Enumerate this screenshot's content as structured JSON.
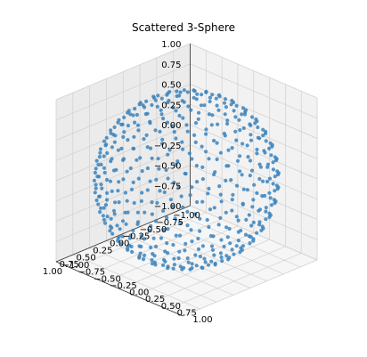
{
  "chart_data": {
    "type": "scatter",
    "subtype": "3d",
    "title": "Scattered 3-Sphere",
    "xlabel": "",
    "ylabel": "",
    "zlabel": "",
    "xlim": [
      -1.0,
      1.0
    ],
    "ylim": [
      -1.0,
      1.0
    ],
    "zlim": [
      -1.0,
      1.0
    ],
    "x_ticks": [
      "−1.00",
      "−0.75",
      "−0.50",
      "−0.25",
      "0.00",
      "0.25",
      "0.50",
      "0.75",
      "1.00"
    ],
    "y_ticks": [
      "−1.00",
      "−0.75",
      "−0.50",
      "−0.25",
      "0.00",
      "0.25",
      "0.50",
      "0.75",
      "1.00"
    ],
    "z_ticks": [
      "−1.00",
      "−0.75",
      "−0.50",
      "−0.25",
      "0.00",
      "0.25",
      "0.50",
      "0.75",
      "1.00"
    ],
    "grid": true,
    "point_color": "#3b84bd",
    "point_count": 500,
    "description_of_points": "points sampled on surface of unit sphere"
  }
}
